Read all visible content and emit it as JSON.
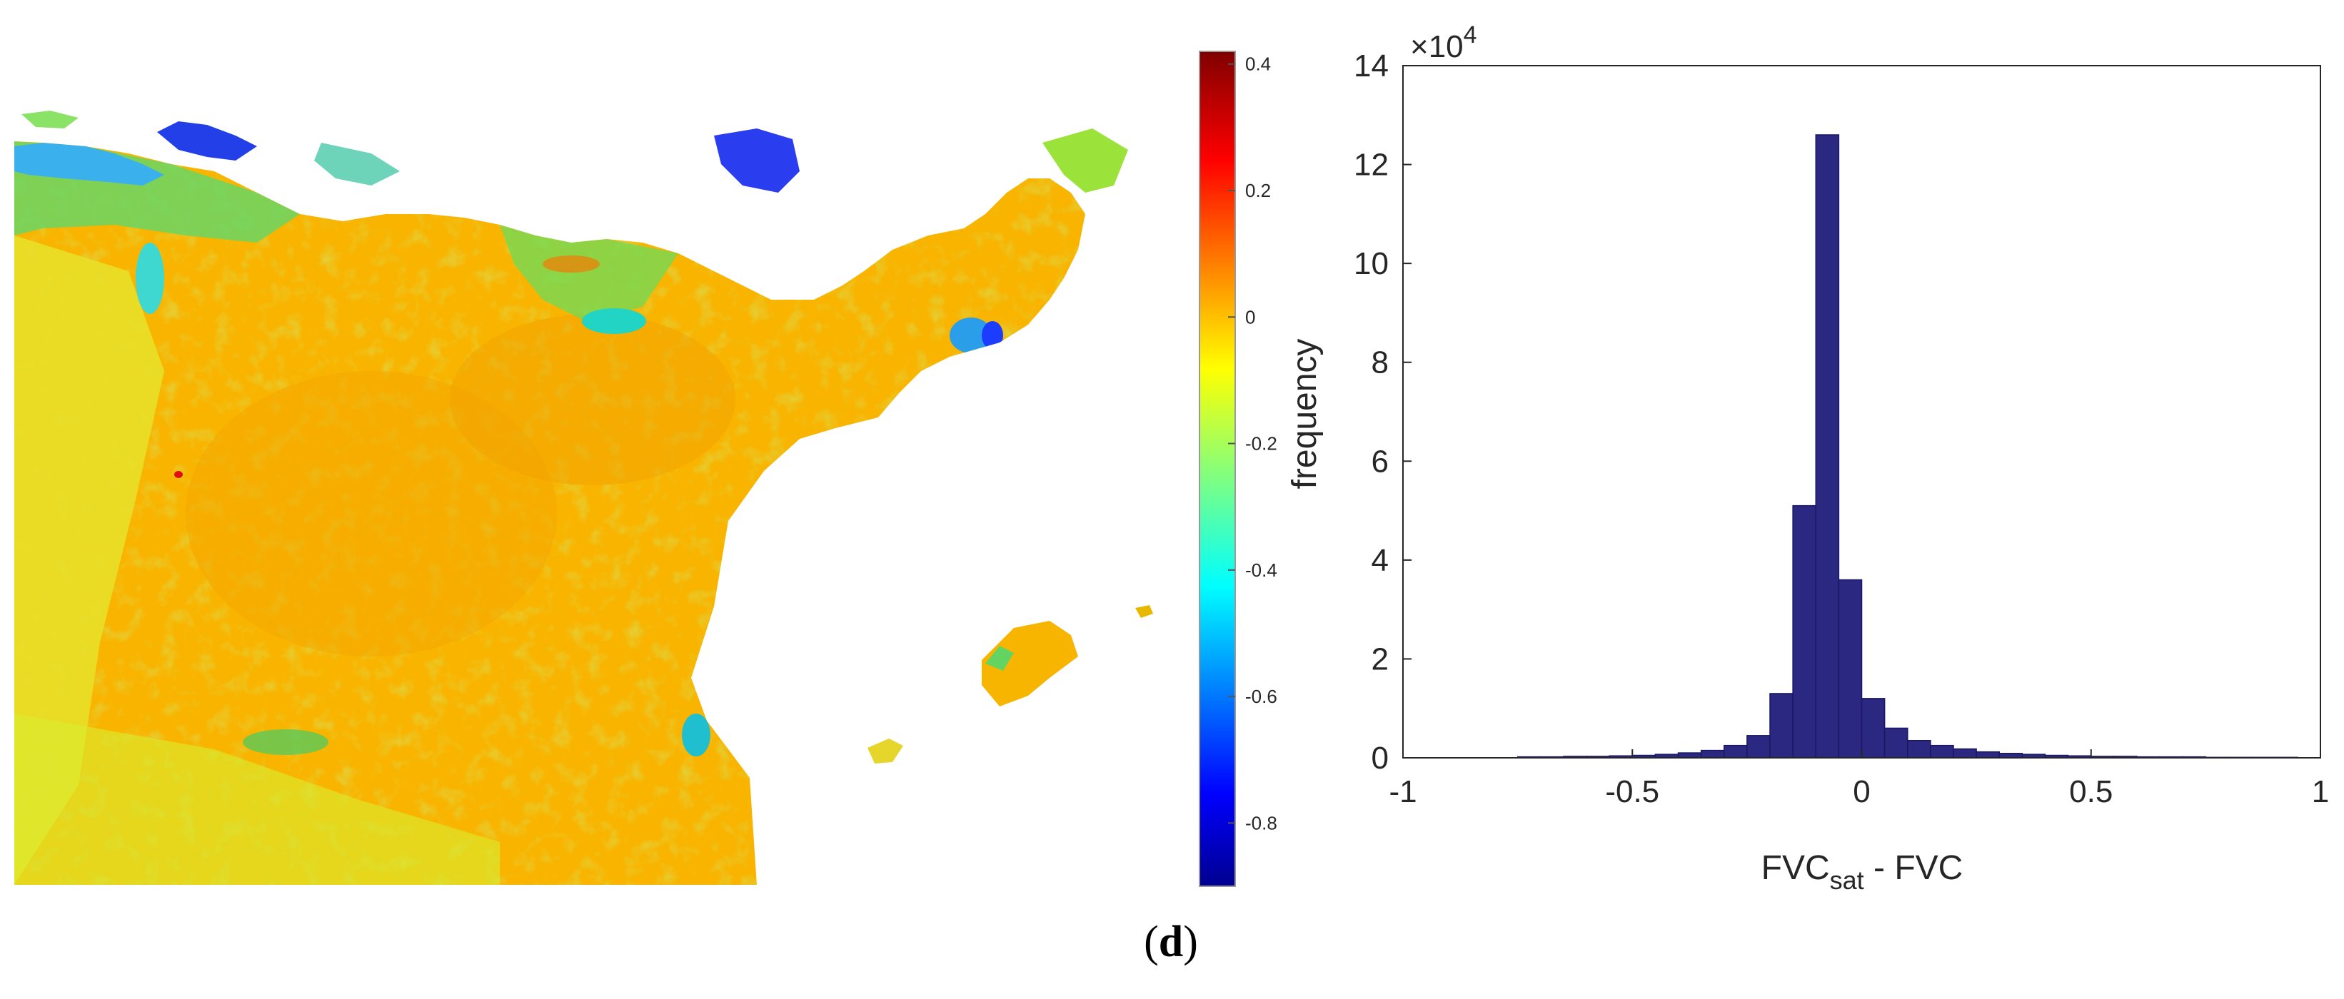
{
  "caption": {
    "open": "(",
    "letter": "d",
    "close": ")"
  },
  "map": {
    "colormap": "jet",
    "colors": {
      "dark_blue": "#00008f",
      "blue": "#0000ff",
      "light_blue": "#0080ff",
      "cyan": "#00ffff",
      "green": "#33d06a",
      "yellow_green": "#b8f23a",
      "yellow": "#ffff00",
      "orange": "#ffab00",
      "red": "#ff0000",
      "dark_red": "#800000"
    }
  },
  "colorbar": {
    "range": [
      -0.9,
      0.42
    ],
    "ticks": [
      "0.4",
      "0.2",
      "0",
      "-0.2",
      "-0.4",
      "-0.6",
      "-0.8"
    ],
    "tick_values": [
      0.4,
      0.2,
      0,
      -0.2,
      -0.4,
      -0.6,
      -0.8
    ]
  },
  "chart_data": {
    "type": "bar",
    "title": "",
    "xlabel": "FVC",
    "xlabel_sub": "sat",
    "xlabel_suffix": " - FVC",
    "ylabel": "frequency",
    "y_exponent_base": "×10",
    "y_exponent_power": "4",
    "xlim": [
      -1,
      1
    ],
    "ylim": [
      0,
      14
    ],
    "x_ticks": [
      "-1",
      "-0.5",
      "0",
      "0.5",
      "1"
    ],
    "x_tick_values": [
      -1,
      -0.5,
      0,
      0.5,
      1
    ],
    "y_ticks": [
      "0",
      "2",
      "4",
      "6",
      "8",
      "10",
      "12",
      "14"
    ],
    "y_tick_values": [
      0,
      2,
      4,
      6,
      8,
      10,
      12,
      14
    ],
    "bar_color": "#2b2882",
    "bin_width": 0.05,
    "bin_centers": [
      -0.725,
      -0.675,
      -0.625,
      -0.575,
      -0.525,
      -0.475,
      -0.425,
      -0.375,
      -0.325,
      -0.275,
      -0.225,
      -0.175,
      -0.125,
      -0.075,
      -0.025,
      0.025,
      0.075,
      0.125,
      0.175,
      0.225,
      0.275,
      0.325,
      0.375,
      0.425,
      0.475,
      0.525,
      0.575,
      0.625,
      0.675,
      0.725,
      0.775,
      0.825,
      0.875,
      0.925
    ],
    "values": [
      0.02,
      0.02,
      0.03,
      0.03,
      0.04,
      0.05,
      0.07,
      0.1,
      0.15,
      0.25,
      0.45,
      1.3,
      5.1,
      12.6,
      3.6,
      1.2,
      0.6,
      0.35,
      0.25,
      0.18,
      0.12,
      0.09,
      0.07,
      0.05,
      0.04,
      0.03,
      0.03,
      0.02,
      0.02,
      0.02,
      0.01,
      0.01,
      0.01,
      0.01
    ],
    "y_unit_multiplier": 10000
  }
}
